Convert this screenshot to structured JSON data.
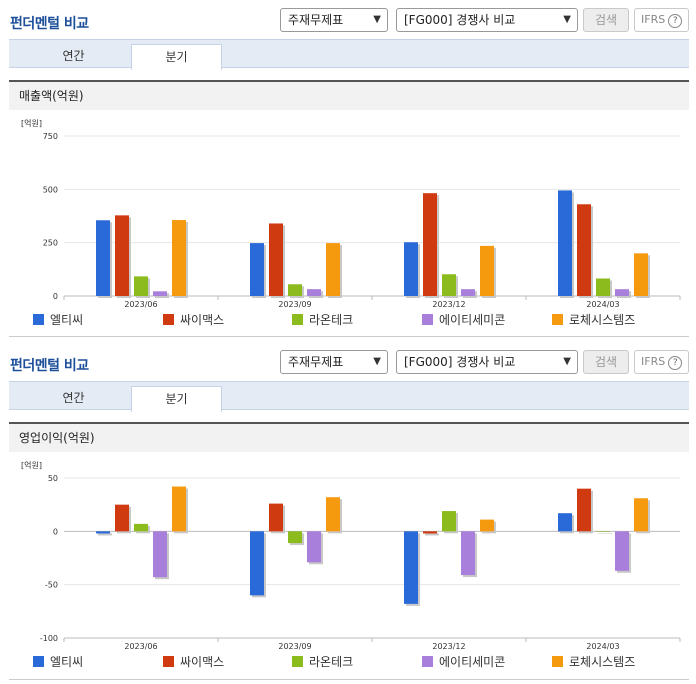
{
  "panels": [
    {
      "title": "펀더멘털 비교",
      "select1": "주재무제표",
      "select2": "[FG000] 경쟁사 비교",
      "search_label": "검색",
      "ifrs_label": "IFRS",
      "tabs": [
        "연간",
        "분기"
      ],
      "active_tab": "분기",
      "metric": "매출액(억원)",
      "unit": "[억원]"
    },
    {
      "title": "펀더멘털 비교",
      "select1": "주재무제표",
      "select2": "[FG000] 경쟁사 비교",
      "search_label": "검색",
      "ifrs_label": "IFRS",
      "tabs": [
        "연간",
        "분기"
      ],
      "active_tab": "분기",
      "metric": "영업이익(억원)",
      "unit": "[억원]"
    }
  ],
  "chart_data": [
    {
      "type": "bar",
      "categories": [
        "2023/06",
        "2023/09",
        "2023/12",
        "2024/03"
      ],
      "ylim": [
        0,
        750
      ],
      "yticks": [
        750,
        500,
        250,
        0
      ],
      "series": [
        {
          "name": "엘티씨",
          "color": "#2a6ad8",
          "values": [
            355,
            248,
            252,
            495
          ]
        },
        {
          "name": "싸이맥스",
          "color": "#d03a10",
          "values": [
            378,
            340,
            482,
            430
          ]
        },
        {
          "name": "라온테크",
          "color": "#8cbb1e",
          "values": [
            92,
            55,
            102,
            82
          ]
        },
        {
          "name": "에이티세미콘",
          "color": "#a97fdc",
          "values": [
            22,
            32,
            32,
            32
          ]
        },
        {
          "name": "로체시스템즈",
          "color": "#f59a0f",
          "values": [
            356,
            248,
            235,
            200
          ]
        }
      ]
    },
    {
      "type": "bar",
      "categories": [
        "2023/06",
        "2023/09",
        "2023/12",
        "2024/03"
      ],
      "ylim": [
        -100,
        50
      ],
      "yticks": [
        50,
        0,
        -50,
        -100
      ],
      "series": [
        {
          "name": "엘티씨",
          "color": "#2a6ad8",
          "values": [
            -2,
            -60,
            -68,
            17
          ]
        },
        {
          "name": "싸이맥스",
          "color": "#d03a10",
          "values": [
            25,
            26,
            -2,
            40
          ]
        },
        {
          "name": "라온테크",
          "color": "#8cbb1e",
          "values": [
            7,
            -11,
            19,
            0
          ]
        },
        {
          "name": "에이티세미콘",
          "color": "#a97fdc",
          "values": [
            -43,
            -29,
            -41,
            -37
          ]
        },
        {
          "name": "로체시스템즈",
          "color": "#f59a0f",
          "values": [
            42,
            32,
            11,
            31
          ]
        }
      ]
    }
  ]
}
